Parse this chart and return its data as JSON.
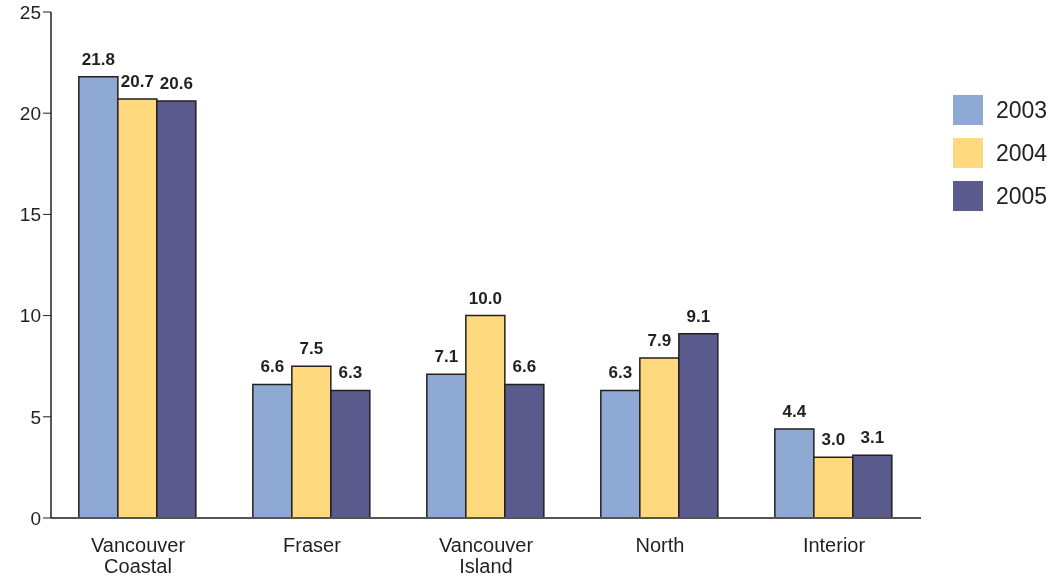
{
  "chart_data": {
    "type": "bar",
    "categories": [
      "Vancouver Coastal",
      "Fraser",
      "Vancouver Island",
      "North",
      "Interior"
    ],
    "series": [
      {
        "name": "2003",
        "color": "#8eaad4",
        "values": [
          21.8,
          6.6,
          7.1,
          6.3,
          4.4
        ],
        "value_labels": [
          "21.8",
          "6.6",
          "7.1",
          "6.3",
          "4.4"
        ]
      },
      {
        "name": "2004",
        "color": "#ffd97e",
        "values": [
          20.7,
          7.5,
          10.0,
          7.9,
          3.0
        ],
        "value_labels": [
          "20.7",
          "7.5",
          "10.0",
          "7.9",
          "3.0"
        ]
      },
      {
        "name": "2005",
        "color": "#5a5a8c",
        "values": [
          20.6,
          6.3,
          6.6,
          9.1,
          3.1
        ],
        "value_labels": [
          "20.6",
          "6.3",
          "6.6",
          "9.1",
          "3.1"
        ]
      }
    ],
    "ylim": [
      0,
      25
    ],
    "yticks": [
      0,
      5,
      10,
      15,
      20,
      25
    ],
    "legend": "right"
  }
}
